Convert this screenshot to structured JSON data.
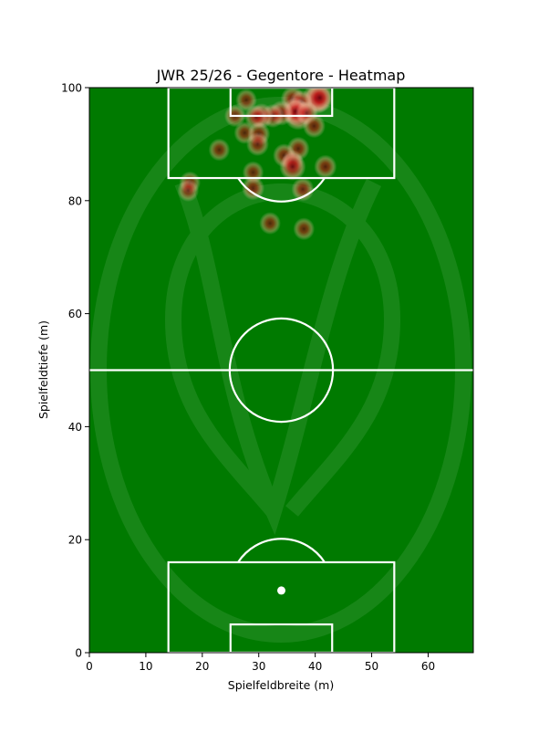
{
  "chart_data": {
    "type": "heatmap",
    "title": "JWR 25/26 - Gegentore - Heatmap",
    "xlabel": "Spielfeldbreite (m)",
    "ylabel": "Spielfeldtiefe (m)",
    "xlim": [
      0,
      68
    ],
    "ylim": [
      0,
      100
    ],
    "xticks": [
      "0",
      "10",
      "20",
      "30",
      "40",
      "50",
      "60"
    ],
    "yticks": [
      "0",
      "20",
      "40",
      "60",
      "80",
      "100"
    ],
    "grid": false,
    "legend": "none",
    "colors": {
      "pitch": "#007a00",
      "lines": "#ffffff",
      "heat_low": "#fbe3d8",
      "heat_mid": "#ef5b4a",
      "heat_high": "#67000d"
    },
    "points": [
      {
        "x": 40.2,
        "y": 98.0,
        "w": 1.0
      },
      {
        "x": 40.8,
        "y": 98.2,
        "w": 0.9
      },
      {
        "x": 36.0,
        "y": 98.0,
        "w": 0.6
      },
      {
        "x": 37.5,
        "y": 97.5,
        "w": 0.5
      },
      {
        "x": 27.8,
        "y": 97.8,
        "w": 0.4
      },
      {
        "x": 37.0,
        "y": 95.2,
        "w": 1.0
      },
      {
        "x": 36.5,
        "y": 95.8,
        "w": 0.8
      },
      {
        "x": 38.5,
        "y": 95.5,
        "w": 0.5
      },
      {
        "x": 34.0,
        "y": 95.5,
        "w": 0.6
      },
      {
        "x": 32.5,
        "y": 95.0,
        "w": 0.5
      },
      {
        "x": 30.5,
        "y": 95.0,
        "w": 0.6
      },
      {
        "x": 29.5,
        "y": 94.8,
        "w": 0.5
      },
      {
        "x": 25.8,
        "y": 95.0,
        "w": 0.4
      },
      {
        "x": 39.8,
        "y": 93.2,
        "w": 0.5
      },
      {
        "x": 27.5,
        "y": 92.0,
        "w": 0.4
      },
      {
        "x": 30.0,
        "y": 91.8,
        "w": 0.5
      },
      {
        "x": 29.8,
        "y": 90.0,
        "w": 0.5
      },
      {
        "x": 23.0,
        "y": 89.0,
        "w": 0.4
      },
      {
        "x": 37.0,
        "y": 89.2,
        "w": 0.5
      },
      {
        "x": 34.5,
        "y": 88.0,
        "w": 0.5
      },
      {
        "x": 36.0,
        "y": 87.0,
        "w": 0.4
      },
      {
        "x": 36.0,
        "y": 86.0,
        "w": 0.8
      },
      {
        "x": 41.8,
        "y": 86.0,
        "w": 0.5
      },
      {
        "x": 29.0,
        "y": 85.0,
        "w": 0.4
      },
      {
        "x": 17.8,
        "y": 83.2,
        "w": 0.4
      },
      {
        "x": 17.5,
        "y": 81.8,
        "w": 0.4
      },
      {
        "x": 29.0,
        "y": 82.2,
        "w": 0.5
      },
      {
        "x": 37.8,
        "y": 82.0,
        "w": 0.5
      },
      {
        "x": 32.0,
        "y": 76.0,
        "w": 0.4
      },
      {
        "x": 38.0,
        "y": 75.0,
        "w": 0.4
      }
    ]
  }
}
